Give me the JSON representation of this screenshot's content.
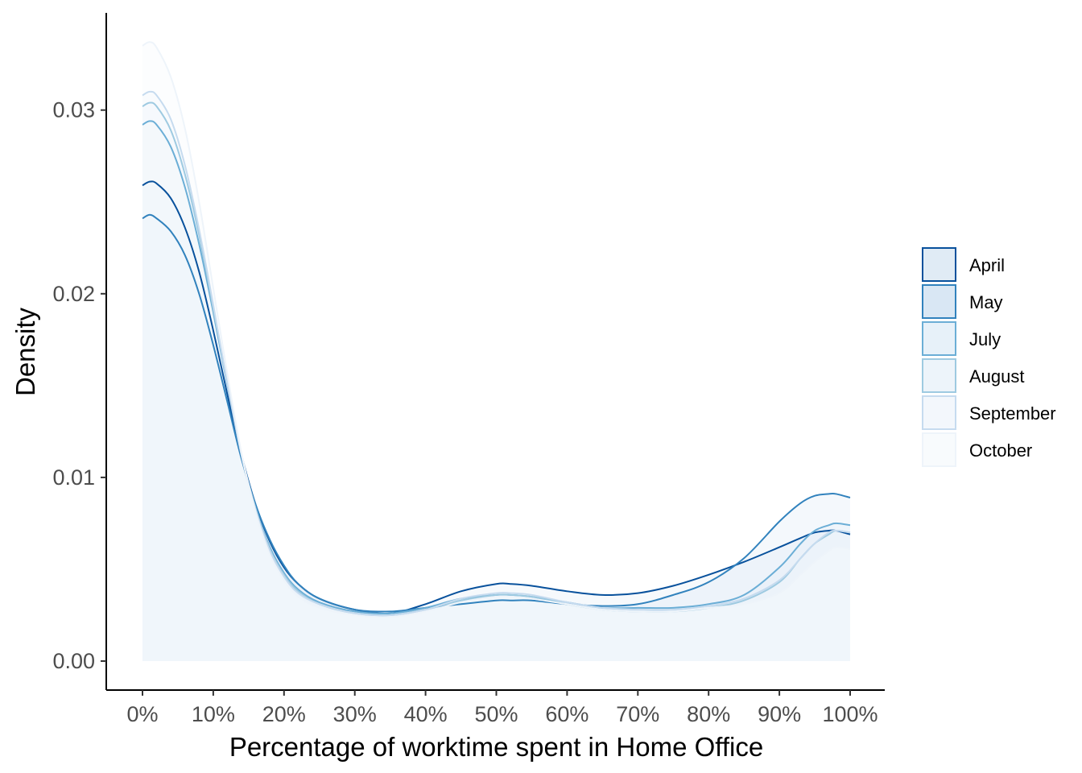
{
  "chart_data": {
    "type": "area",
    "subtype": "density",
    "xlabel": "Percentage of worktime spent in Home Office",
    "ylabel": "Density",
    "xlim": [
      0,
      100
    ],
    "ylim": [
      0,
      0.033
    ],
    "x_ticks": [
      0,
      10,
      20,
      30,
      40,
      50,
      60,
      70,
      80,
      90,
      100
    ],
    "x_tick_labels": [
      "0%",
      "10%",
      "20%",
      "30%",
      "40%",
      "50%",
      "60%",
      "70%",
      "80%",
      "90%",
      "100%"
    ],
    "y_ticks": [
      0,
      0.01,
      0.02,
      0.03
    ],
    "y_tick_labels": [
      "0.00",
      "0.01",
      "0.02",
      "0.03"
    ],
    "grid": false,
    "legend_position": "right",
    "x": [
      0,
      1,
      2,
      4,
      6,
      8,
      10,
      12,
      14,
      16,
      18,
      20,
      22,
      25,
      30,
      35,
      40,
      45,
      50,
      52,
      55,
      60,
      65,
      70,
      75,
      80,
      85,
      90,
      93,
      95,
      97,
      98,
      100
    ],
    "series": [
      {
        "name": "April",
        "line_color": "#08519c",
        "fill_color": "#dbe7f3",
        "fill_opacity": 0.25,
        "values": [
          0.0259,
          0.0261,
          0.026,
          0.0252,
          0.0236,
          0.0212,
          0.018,
          0.0145,
          0.0112,
          0.0085,
          0.0065,
          0.0051,
          0.0042,
          0.0034,
          0.0028,
          0.0026,
          0.0031,
          0.0038,
          0.0042,
          0.0042,
          0.0041,
          0.0038,
          0.0036,
          0.0037,
          0.0041,
          0.0047,
          0.0054,
          0.0062,
          0.0067,
          0.007,
          0.0071,
          0.0071,
          0.0069
        ]
      },
      {
        "name": "May",
        "line_color": "#3182bd",
        "fill_color": "#d2e3f2",
        "fill_opacity": 0.25,
        "values": [
          0.0241,
          0.0243,
          0.0241,
          0.0234,
          0.0221,
          0.02,
          0.0172,
          0.0141,
          0.011,
          0.0085,
          0.0066,
          0.0052,
          0.0042,
          0.0034,
          0.0028,
          0.0027,
          0.0029,
          0.0031,
          0.0033,
          0.0033,
          0.0033,
          0.0031,
          0.003,
          0.0031,
          0.0036,
          0.0043,
          0.0056,
          0.0076,
          0.0086,
          0.009,
          0.0091,
          0.0091,
          0.0089
        ]
      },
      {
        "name": "July",
        "line_color": "#6baed6",
        "fill_color": "#e3eef8",
        "fill_opacity": 0.3,
        "values": [
          0.0292,
          0.0294,
          0.0292,
          0.028,
          0.0258,
          0.0227,
          0.019,
          0.015,
          0.0112,
          0.0083,
          0.0062,
          0.0048,
          0.0039,
          0.0032,
          0.0027,
          0.0026,
          0.0029,
          0.0034,
          0.0036,
          0.0036,
          0.0035,
          0.0032,
          0.0029,
          0.0029,
          0.0029,
          0.0031,
          0.0036,
          0.0051,
          0.0064,
          0.0071,
          0.0074,
          0.0075,
          0.0074
        ]
      },
      {
        "name": "August",
        "line_color": "#9ecae1",
        "fill_color": "#eaf2f9",
        "fill_opacity": 0.3,
        "values": [
          0.0302,
          0.0304,
          0.0302,
          0.0289,
          0.0265,
          0.0232,
          0.0192,
          0.0151,
          0.0112,
          0.0083,
          0.0061,
          0.0047,
          0.0038,
          0.0031,
          0.0026,
          0.0025,
          0.0028,
          0.0033,
          0.0036,
          0.0036,
          0.0035,
          0.0031,
          0.0028,
          0.0027,
          0.0027,
          0.0029,
          0.0033,
          0.0043,
          0.0056,
          0.0064,
          0.0069,
          0.0071,
          0.007
        ]
      },
      {
        "name": "September",
        "line_color": "#c6dbef",
        "fill_color": "#f1f6fb",
        "fill_opacity": 0.35,
        "values": [
          0.0308,
          0.031,
          0.0308,
          0.0295,
          0.027,
          0.0235,
          0.0194,
          0.0151,
          0.0112,
          0.0082,
          0.006,
          0.0046,
          0.0037,
          0.0031,
          0.0026,
          0.0025,
          0.0028,
          0.0034,
          0.0037,
          0.0037,
          0.0036,
          0.0032,
          0.0029,
          0.0028,
          0.0028,
          0.003,
          0.0034,
          0.0044,
          0.0056,
          0.0064,
          0.007,
          0.0071,
          0.007
        ]
      },
      {
        "name": "October",
        "line_color": "#eef4fa",
        "fill_color": "#f7fafd",
        "fill_opacity": 0.4,
        "values": [
          0.0335,
          0.0337,
          0.0334,
          0.0318,
          0.029,
          0.025,
          0.0203,
          0.0156,
          0.0113,
          0.0081,
          0.0058,
          0.0044,
          0.0035,
          0.0029,
          0.0025,
          0.0024,
          0.0027,
          0.0032,
          0.0035,
          0.0035,
          0.0034,
          0.0031,
          0.0028,
          0.0027,
          0.0027,
          0.0029,
          0.0031,
          0.0037,
          0.0047,
          0.0054,
          0.006,
          0.0062,
          0.0061
        ]
      }
    ]
  }
}
